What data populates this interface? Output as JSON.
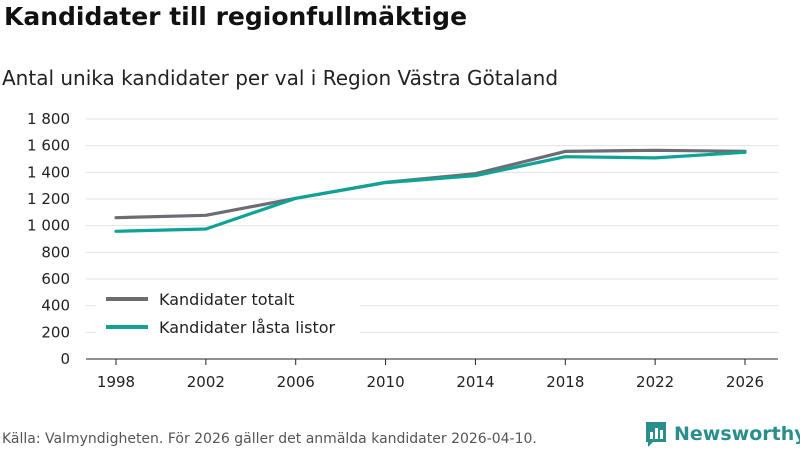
{
  "chart_data": {
    "type": "line",
    "title": "Kandidater till regionfullmäktige",
    "subtitle": "Antal unika kandidater per val i Region Västra Götaland",
    "x": [
      "1998",
      "2002",
      "2006",
      "2010",
      "2014",
      "2018",
      "2022",
      "2026"
    ],
    "y_ticks": [
      "0",
      "200",
      "400",
      "600",
      "800",
      "1 000",
      "1 200",
      "1 400",
      "1 600",
      "1 800"
    ],
    "y_tick_values": [
      0,
      200,
      400,
      600,
      800,
      1000,
      1200,
      1400,
      1600,
      1800
    ],
    "ylim": [
      0,
      1800
    ],
    "grid": true,
    "legend_position": "bottom-left",
    "series": [
      {
        "name": "Kandidater totalt",
        "color": "#6d6c73",
        "values": [
          1060,
          1078,
          1205,
          1325,
          1390,
          1557,
          1565,
          1558
        ]
      },
      {
        "name": "Kandidater låsta listor",
        "color": "#0fa398",
        "values": [
          958,
          975,
          1205,
          1323,
          1375,
          1517,
          1508,
          1550
        ]
      }
    ]
  },
  "footer": {
    "source": "Källa: Valmyndigheten. För 2026 gäller det anmälda kandidater 2026-04-10.",
    "brand": "Newsworthy",
    "brand_icon": "newsworthy-logo-icon"
  }
}
